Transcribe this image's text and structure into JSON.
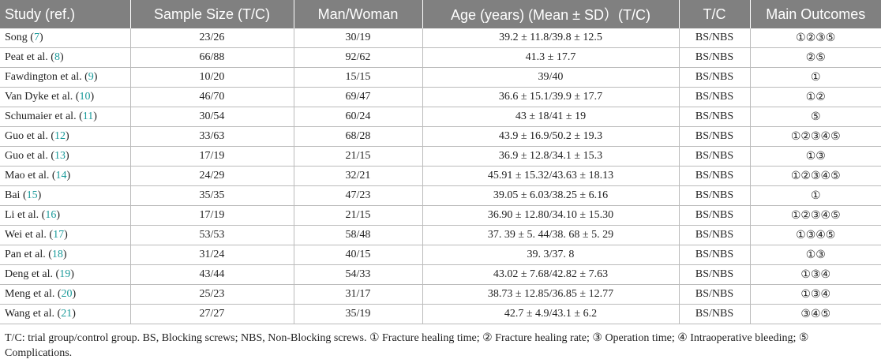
{
  "table": {
    "header": [
      "Study (ref.)",
      "Sample Size (T/C)",
      "Man/Woman",
      "Age (years) (Mean ± SD）(T/C)",
      "T/C",
      "Main Outcomes"
    ],
    "rows": [
      [
        [
          "Song (",
          "7",
          ")"
        ],
        "23/26",
        "30/19",
        "39.2 ± 11.8/39.8 ± 12.5",
        "BS/NBS",
        "①②③⑤"
      ],
      [
        [
          "Peat et al. (",
          "8",
          ")"
        ],
        "66/88",
        "92/62",
        "41.3 ± 17.7",
        "BS/NBS",
        "②⑤"
      ],
      [
        [
          "Fawdington et al. (",
          "9",
          ")"
        ],
        "10/20",
        "15/15",
        "39/40",
        "BS/NBS",
        "①"
      ],
      [
        [
          "Van Dyke et al. (",
          "10",
          ")"
        ],
        "46/70",
        "69/47",
        "36.6 ± 15.1/39.9 ± 17.7",
        "BS/NBS",
        "①②"
      ],
      [
        [
          "Schumaier et al. (",
          "11",
          ")"
        ],
        "30/54",
        "60/24",
        "43 ± 18/41 ± 19",
        "BS/NBS",
        "⑤"
      ],
      [
        [
          "Guo et al. (",
          "12",
          ")"
        ],
        "33/63",
        "68/28",
        "43.9 ± 16.9/50.2 ± 19.3",
        "BS/NBS",
        "①②③④⑤"
      ],
      [
        [
          "Guo et al. (",
          "13",
          ")"
        ],
        "17/19",
        "21/15",
        "36.9 ± 12.8/34.1 ± 15.3",
        "BS/NBS",
        "①③"
      ],
      [
        [
          "Mao et al. (",
          "14",
          ")"
        ],
        "24/29",
        "32/21",
        "45.91 ± 15.32/43.63 ± 18.13",
        "BS/NBS",
        "①②③④⑤"
      ],
      [
        [
          "Bai (",
          "15",
          ")"
        ],
        "35/35",
        "47/23",
        "39.05 ± 6.03/38.25 ± 6.16",
        "BS/NBS",
        "①"
      ],
      [
        [
          "Li et al. (",
          "16",
          ")"
        ],
        "17/19",
        "21/15",
        "36.90 ± 12.80/34.10 ± 15.30",
        "BS/NBS",
        "①②③④⑤"
      ],
      [
        [
          "Wei et al. (",
          "17",
          ")"
        ],
        "53/53",
        "58/48",
        "37. 39 ± 5. 44/38. 68 ± 5. 29",
        "BS/NBS",
        "①③④⑤"
      ],
      [
        [
          "Pan et al. (",
          "18",
          ")"
        ],
        "31/24",
        "40/15",
        "39. 3/37. 8",
        "BS/NBS",
        "①③"
      ],
      [
        [
          "Deng et al. (",
          "19",
          ")"
        ],
        "43/44",
        "54/33",
        "43.02 ± 7.68/42.82 ± 7.63",
        "BS/NBS",
        "①③④"
      ],
      [
        [
          "Meng et al. (",
          "20",
          ")"
        ],
        "25/23",
        "31/17",
        "38.73 ± 12.85/36.85 ± 12.77",
        "BS/NBS",
        "①③④"
      ],
      [
        [
          "Wang et al. (",
          "21",
          ")"
        ],
        "27/27",
        "35/19",
        "42.7 ± 4.9/43.1 ± 6.2",
        "BS/NBS",
        "③④⑤"
      ]
    ],
    "footnote": "T/C: trial group/control group. BS, Blocking screws; NBS, Non-Blocking screws. ① Fracture healing time; ② Fracture healing rate; ③ Operation time; ④ Intraoperative bleeding; ⑤ Complications."
  }
}
